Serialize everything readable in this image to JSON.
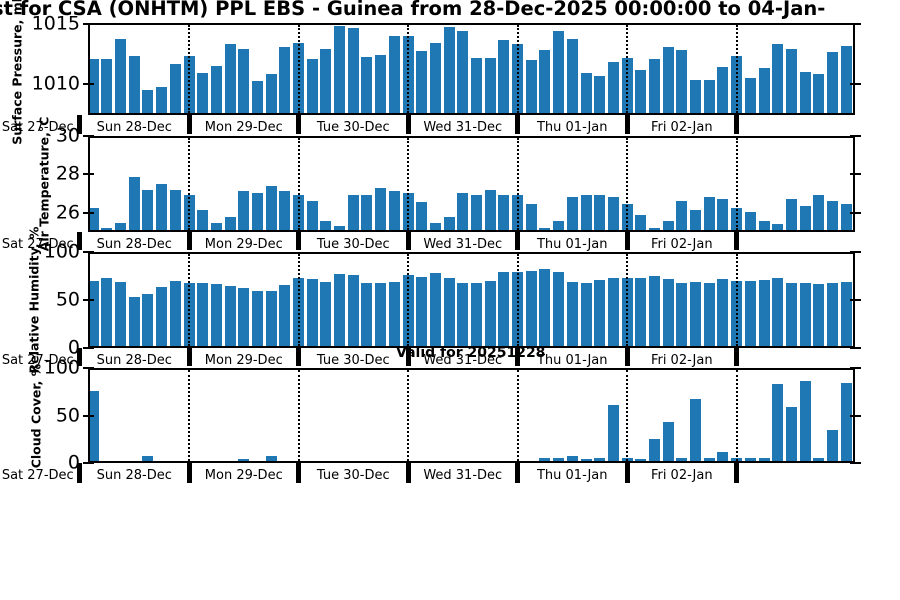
{
  "title": "st for CSA (ONHTM) PPL EBS  - Guinea from 28-Dec-2025 00:00:00 to 04-Jan-",
  "annotation": {
    "valid_for": "Valid for 20251228"
  },
  "colors": {
    "bar": "#1f77b4",
    "axis": "#000000",
    "background": "#ffffff"
  },
  "x_axis": {
    "day_labels": [
      "Sat 27-Dec",
      "Sun 28-Dec",
      "Mon 29-Dec",
      "Tue 30-Dec",
      "Wed 31-Dec",
      "Thu 01-Jan",
      "Fri 02-Jan"
    ],
    "points_per_day": 8,
    "n_points": 56
  },
  "chart_data": {
    "type": "bar",
    "categories_days": [
      "Sat 27-Dec",
      "Sun 28-Dec",
      "Mon 29-Dec",
      "Tue 30-Dec",
      "Wed 31-Dec",
      "Thu 01-Jan",
      "Fri 02-Jan"
    ],
    "legend": "none",
    "grid": "dotted vertical day boundaries",
    "panels": [
      {
        "name": "surface-pressure",
        "ylabel": "Surface Pressure, mb",
        "ylim": [
          1007.4,
          1015.1
        ],
        "yticks": [
          1010,
          1015
        ],
        "values": [
          1012.1,
          1012.1,
          1013.9,
          1012.4,
          1009.4,
          1009.7,
          1011.7,
          1012.4,
          1010.9,
          1011.5,
          1013.4,
          1013.0,
          1010.2,
          1010.8,
          1013.2,
          1013.5,
          1012.1,
          1013.0,
          1015.0,
          1014.8,
          1012.3,
          1012.5,
          1014.1,
          1014.1,
          1012.8,
          1013.5,
          1014.9,
          1014.6,
          1012.2,
          1012.2,
          1013.8,
          1013.4,
          1012.0,
          1012.9,
          1014.6,
          1013.9,
          1010.9,
          1010.6,
          1011.9,
          1012.2,
          1011.2,
          1012.1,
          1013.2,
          1012.9,
          1010.3,
          1010.3,
          1011.4,
          1012.4,
          1010.5,
          1011.3,
          1013.4,
          1013.0,
          1011.0,
          1010.8,
          1012.7,
          1013.3
        ]
      },
      {
        "name": "air-temperature",
        "ylabel": "Air Temperature,°C",
        "ylim": [
          25,
          30
        ],
        "yticks": [
          26,
          28,
          30
        ],
        "values": [
          26.2,
          25.1,
          25.4,
          27.9,
          27.2,
          27.5,
          27.2,
          26.9,
          26.1,
          25.4,
          25.7,
          27.1,
          27.0,
          27.4,
          27.1,
          26.9,
          26.6,
          25.5,
          25.2,
          26.9,
          26.9,
          27.3,
          27.1,
          27.0,
          26.5,
          25.4,
          25.7,
          27.0,
          26.9,
          27.2,
          26.9,
          26.9,
          26.4,
          25.1,
          25.5,
          26.8,
          26.9,
          26.9,
          26.8,
          26.4,
          25.8,
          25.1,
          25.5,
          26.6,
          26.1,
          26.8,
          26.7,
          26.2,
          26.0,
          25.5,
          25.3,
          26.7,
          26.3,
          26.9,
          26.6,
          26.4
        ]
      },
      {
        "name": "relative-humidity",
        "ylabel": "Relative Humidity, %",
        "ylim": [
          0,
          100
        ],
        "yticks": [
          0,
          50,
          100
        ],
        "values": [
          71,
          74,
          70,
          53,
          57,
          64,
          71,
          68,
          68,
          67,
          65,
          63,
          60,
          60,
          66,
          74,
          73,
          70,
          78,
          77,
          68,
          68,
          70,
          77,
          75,
          79,
          74,
          69,
          69,
          71,
          80,
          80,
          81,
          84,
          80,
          70,
          69,
          72,
          74,
          74,
          74,
          76,
          73,
          68,
          70,
          69,
          73,
          71,
          71,
          72,
          74,
          69,
          69,
          67,
          69,
          70
        ]
      },
      {
        "name": "cloud-cover",
        "ylabel": "Cloud Cover, %",
        "ylim": [
          0,
          100
        ],
        "yticks": [
          0,
          50,
          100
        ],
        "values": [
          77,
          0,
          0,
          0,
          5,
          0,
          0,
          0,
          0,
          0,
          0,
          2,
          0,
          5,
          0,
          0,
          0,
          0,
          0,
          0,
          0,
          0,
          0,
          0,
          0,
          0,
          0,
          0,
          0,
          0,
          0,
          0,
          0,
          3,
          3,
          5,
          2,
          3,
          61,
          3,
          2,
          24,
          43,
          3,
          68,
          3,
          10,
          3,
          3,
          3,
          85,
          59,
          88,
          3,
          34,
          86
        ]
      }
    ]
  }
}
